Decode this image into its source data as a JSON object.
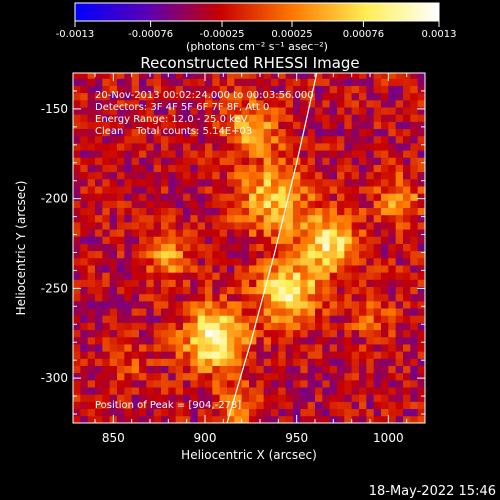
{
  "colorbar": {
    "tick_labels": [
      "-0.0013",
      "-0.00076",
      "-0.00025",
      "0.00025",
      "0.00076",
      "0.0013"
    ],
    "tick_values": [
      -0.0013,
      -0.00076,
      -0.00025,
      0.00025,
      0.00076,
      0.0013
    ],
    "range": [
      -0.0013,
      0.0013
    ],
    "units_label": "(photons cm⁻² s⁻¹ asec⁻²)",
    "colors": [
      "#0000ff",
      "#5a00b4",
      "#c80000",
      "#ff7a00",
      "#ffee55",
      "#ffffff"
    ]
  },
  "chart_data": {
    "type": "heatmap",
    "title": "Reconstructed RHESSI Image",
    "xlabel": "Heliocentric X (arcsec)",
    "ylabel": "Heliocentric Y (arcsec)",
    "xlim": [
      828,
      1020
    ],
    "ylim": [
      -325,
      -130
    ],
    "x_ticks": [
      850,
      900,
      950,
      1000
    ],
    "y_ticks": [
      -150,
      -200,
      -250,
      -300
    ],
    "grid": false,
    "info_lines": [
      "20-Nov-2013 00:02:24.000 to 00:03:56.000",
      "Detectors: 3F 4F 5F 6F 7F 8F, Att 0",
      "Energy Range: 12.0 - 25.0 keV",
      "Clean    Total counts: 5.14E+03"
    ],
    "peak_label": "Position of Peak = [904,-278]",
    "peak_position": [
      904,
      -278
    ],
    "limb_curve": {
      "x": [
        912,
        925,
        938,
        950,
        961
      ],
      "y": [
        -325,
        -280,
        -230,
        -180,
        -130
      ]
    },
    "sources": [
      {
        "x": 905,
        "y": -278,
        "amp": 1.0,
        "sigma": 12
      },
      {
        "x": 945,
        "y": -252,
        "amp": 0.85,
        "sigma": 12
      },
      {
        "x": 937,
        "y": -200,
        "amp": 0.65,
        "sigma": 14
      },
      {
        "x": 968,
        "y": -225,
        "amp": 0.8,
        "sigma": 11
      },
      {
        "x": 925,
        "y": -160,
        "amp": 0.55,
        "sigma": 11
      },
      {
        "x": 880,
        "y": -232,
        "amp": 0.5,
        "sigma": 9
      },
      {
        "x": 1005,
        "y": -200,
        "amp": 0.5,
        "sigma": 9
      },
      {
        "x": 990,
        "y": -265,
        "amp": 0.35,
        "sigma": 9
      },
      {
        "x": 918,
        "y": -316,
        "amp": 0.45,
        "sigma": 8
      },
      {
        "x": 860,
        "y": -290,
        "amp": 0.25,
        "sigma": 8
      }
    ]
  },
  "footer": {
    "timestamp": "18-May-2022 15:46"
  }
}
